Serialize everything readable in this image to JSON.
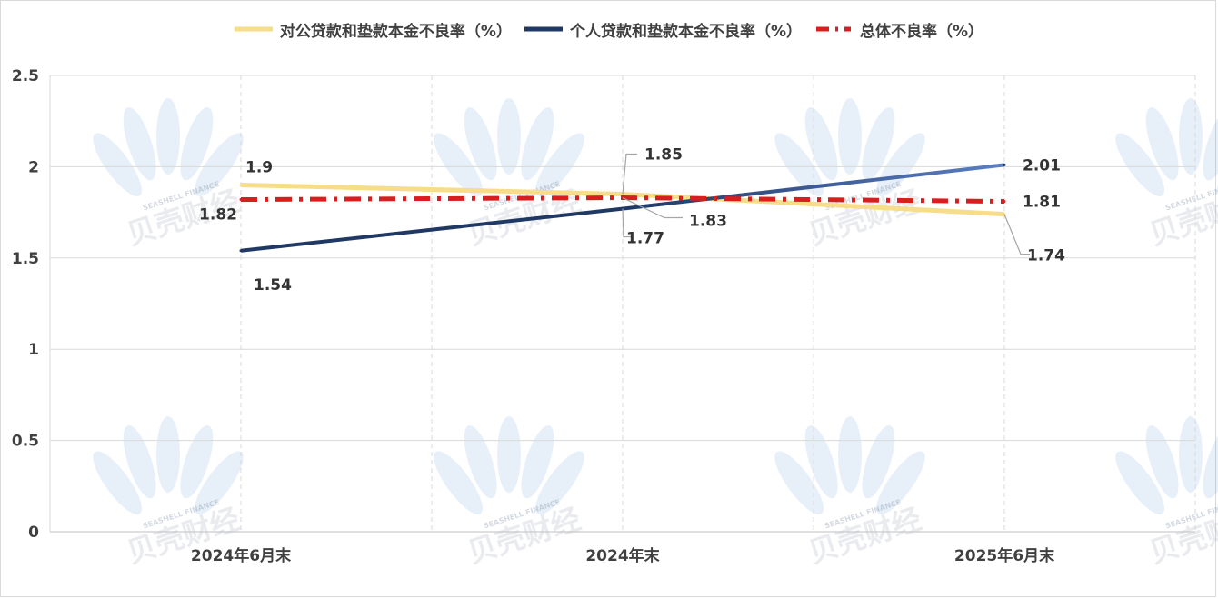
{
  "chart_data": {
    "type": "line",
    "title": "",
    "xlabel": "",
    "ylabel": "",
    "categories": [
      "2024年6月末",
      "2024年末",
      "2025年6月末"
    ],
    "ylim": [
      0,
      2.5
    ],
    "yticks": [
      "0",
      "0.5",
      "1",
      "1.5",
      "2",
      "2.5"
    ],
    "grid": true,
    "legend_position": "top",
    "series": [
      {
        "name": "对公贷款和垫款本金不良率（%）",
        "values": [
          1.9,
          1.85,
          1.74
        ],
        "labels": [
          "1.9",
          "1.85",
          "1.74"
        ],
        "color": "#f7dd8a",
        "style": "solid"
      },
      {
        "name": "个人贷款和垫款本金不良率（%）",
        "values": [
          1.54,
          1.77,
          2.01
        ],
        "labels": [
          "1.54",
          "1.77",
          "2.01"
        ],
        "color": "#1f3864",
        "color_end": "#5b7fc4",
        "style": "solid"
      },
      {
        "name": "总体不良率（%）",
        "values": [
          1.82,
          1.83,
          1.81
        ],
        "labels": [
          "1.82",
          "1.83",
          "1.81"
        ],
        "color": "#d81e1e",
        "style": "dash-dot"
      }
    ],
    "watermark": {
      "cn_text": "贝壳财经",
      "en_text": "SEASHELL FINANCE"
    }
  }
}
